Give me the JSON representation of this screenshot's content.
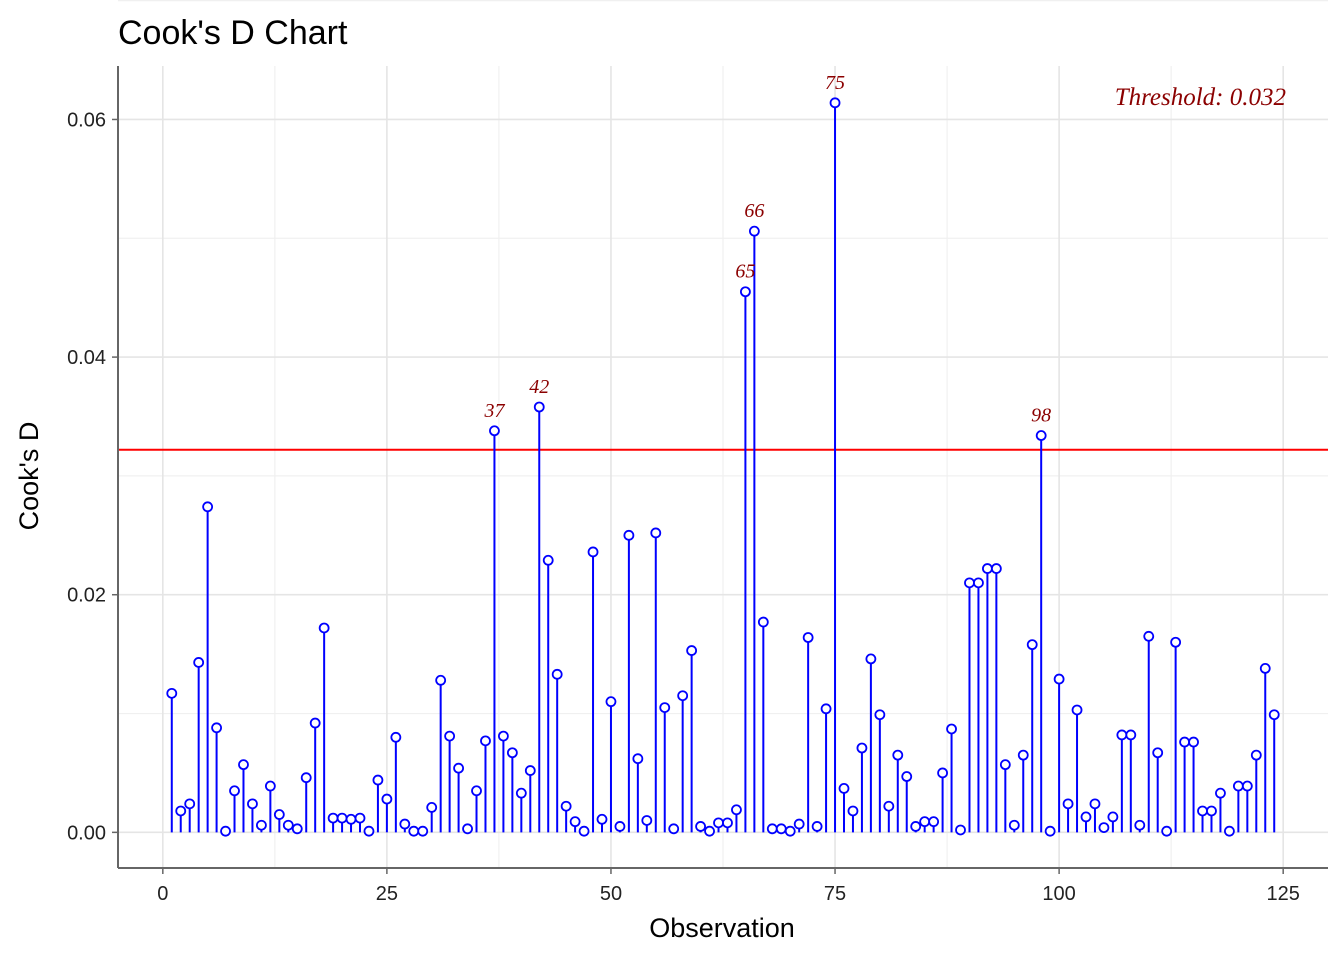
{
  "chart_data": {
    "type": "lollipop",
    "title": "Cook's D Chart",
    "xlabel": "Observation",
    "ylabel": "Cook's D",
    "xlim": [
      -5,
      130
    ],
    "ylim": [
      -0.003,
      0.0645
    ],
    "x_ticks": [
      0,
      25,
      50,
      75,
      100,
      125
    ],
    "y_ticks": [
      0.0,
      0.02,
      0.04,
      0.06
    ],
    "x_tick_labels": [
      "0",
      "25",
      "50",
      "75",
      "100",
      "125"
    ],
    "y_tick_labels": [
      "0.00",
      "0.02",
      "0.04",
      "0.06"
    ],
    "grid": true,
    "colors": {
      "stem": "#0000ff",
      "threshold": "#ff0000",
      "annotation": "#8b0000"
    },
    "threshold": {
      "value": 0.0322,
      "label": "Threshold: 0.032"
    },
    "x": [
      1,
      2,
      3,
      4,
      5,
      6,
      7,
      8,
      9,
      10,
      11,
      12,
      13,
      14,
      15,
      16,
      17,
      18,
      19,
      20,
      21,
      22,
      23,
      24,
      25,
      26,
      27,
      28,
      29,
      30,
      31,
      32,
      33,
      34,
      35,
      36,
      37,
      38,
      39,
      40,
      41,
      42,
      43,
      44,
      45,
      46,
      47,
      48,
      49,
      50,
      51,
      52,
      53,
      54,
      55,
      56,
      57,
      58,
      59,
      60,
      61,
      62,
      63,
      64,
      65,
      66,
      67,
      68,
      69,
      70,
      71,
      72,
      73,
      74,
      75,
      76,
      77,
      78,
      79,
      80,
      81,
      82,
      83,
      84,
      85,
      86,
      87,
      88,
      89,
      90,
      91,
      92,
      93,
      94,
      95,
      96,
      97,
      98,
      99,
      100,
      101,
      102,
      103,
      104,
      105,
      106,
      107,
      108,
      109,
      110,
      111,
      112,
      113,
      114,
      115,
      116,
      117,
      118,
      119,
      120,
      121,
      122,
      123,
      124
    ],
    "values": [
      0.0117,
      0.0018,
      0.0024,
      0.0143,
      0.0274,
      0.0088,
      0.0001,
      0.0035,
      0.0057,
      0.0024,
      0.0006,
      0.0039,
      0.0015,
      0.0006,
      0.0003,
      0.0046,
      0.0092,
      0.0172,
      0.0012,
      0.0012,
      0.0011,
      0.0012,
      0.0001,
      0.0044,
      0.0028,
      0.008,
      0.0007,
      0.0001,
      0.0001,
      0.0021,
      0.0128,
      0.0081,
      0.0054,
      0.0003,
      0.0035,
      0.0077,
      0.0338,
      0.0081,
      0.0067,
      0.0033,
      0.0052,
      0.0358,
      0.0229,
      0.0133,
      0.0022,
      0.0009,
      0.0001,
      0.0236,
      0.0011,
      0.011,
      0.0005,
      0.025,
      0.0062,
      0.001,
      0.0252,
      0.0105,
      0.0003,
      0.0115,
      0.0153,
      0.0005,
      0.0001,
      0.0008,
      0.0008,
      0.0019,
      0.0455,
      0.0506,
      0.0177,
      0.0003,
      0.0003,
      0.0001,
      0.0007,
      0.0164,
      0.0005,
      0.0104,
      0.0614,
      0.0037,
      0.0018,
      0.0071,
      0.0146,
      0.0099,
      0.0022,
      0.0065,
      0.0047,
      0.0005,
      0.0009,
      0.0009,
      0.005,
      0.0087,
      0.0002,
      0.021,
      0.021,
      0.0222,
      0.0222,
      0.0057,
      0.0006,
      0.0065,
      0.0158,
      0.0334,
      0.0001,
      0.0129,
      0.0024,
      0.0103,
      0.0013,
      0.0024,
      0.0004,
      0.0013,
      0.0082,
      0.0082,
      0.0006,
      0.0165,
      0.0067,
      0.0001,
      0.016,
      0.0076,
      0.0076,
      0.0018,
      0.0018,
      0.0033,
      0.0001,
      0.0039,
      0.0039,
      0.0065,
      0.0138,
      0.0099
    ],
    "labeled_points": [
      {
        "x": 37,
        "label": "37"
      },
      {
        "x": 42,
        "label": "42"
      },
      {
        "x": 65,
        "label": "65"
      },
      {
        "x": 66,
        "label": "66"
      },
      {
        "x": 75,
        "label": "75"
      },
      {
        "x": 98,
        "label": "98"
      }
    ]
  }
}
